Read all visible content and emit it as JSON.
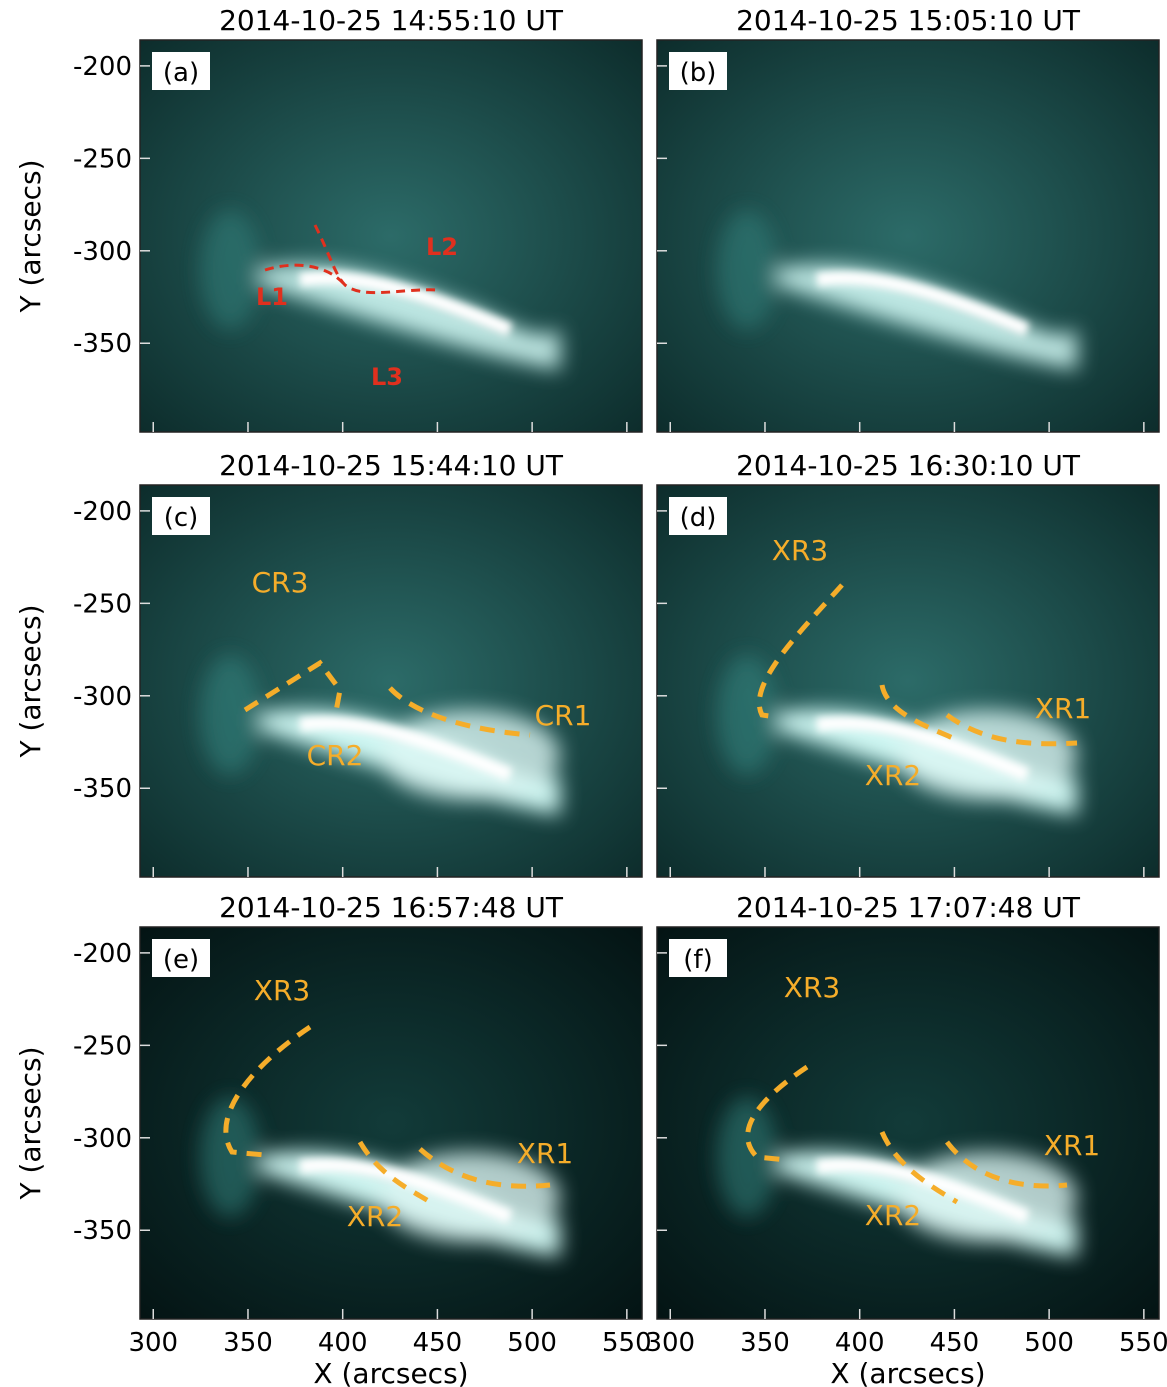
{
  "chart_data": [
    {
      "type": "image",
      "title": "2014-10-25 14:55:10 UT",
      "panel_label": "(a)",
      "ylabel": "Y (arcsecs)",
      "xlim": [
        293,
        558
      ],
      "ylim": [
        -398,
        -186
      ],
      "xticks": [
        300,
        350,
        400,
        450,
        500,
        550
      ],
      "yticks": [
        -200,
        -250,
        -300,
        -350
      ],
      "annotations": [
        "L1",
        "L2",
        "L3"
      ]
    },
    {
      "type": "image",
      "title": "2014-10-25 15:05:10 UT",
      "panel_label": "(b)",
      "xlim": [
        293,
        558
      ],
      "ylim": [
        -398,
        -186
      ],
      "xticks": [
        300,
        350,
        400,
        450,
        500,
        550
      ],
      "yticks": [
        -200,
        -250,
        -300,
        -350
      ],
      "annotations": []
    },
    {
      "type": "image",
      "title": "2014-10-25 15:44:10 UT",
      "panel_label": "(c)",
      "ylabel": "Y (arcsecs)",
      "xlim": [
        293,
        558
      ],
      "ylim": [
        -398,
        -186
      ],
      "xticks": [
        300,
        350,
        400,
        450,
        500,
        550
      ],
      "yticks": [
        -200,
        -250,
        -300,
        -350
      ],
      "annotations": [
        "CR3",
        "CR2",
        "CR1"
      ]
    },
    {
      "type": "image",
      "title": "2014-10-25 16:30:10 UT",
      "panel_label": "(d)",
      "xlim": [
        293,
        558
      ],
      "ylim": [
        -398,
        -186
      ],
      "xticks": [
        300,
        350,
        400,
        450,
        500,
        550
      ],
      "yticks": [
        -200,
        -250,
        -300,
        -350
      ],
      "annotations": [
        "XR3",
        "XR1",
        "XR2"
      ]
    },
    {
      "type": "image",
      "title": "2014-10-25 16:57:48 UT",
      "panel_label": "(e)",
      "ylabel": "Y (arcsecs)",
      "xlabel": "X (arcsecs)",
      "xlim": [
        293,
        558
      ],
      "ylim": [
        -398,
        -186
      ],
      "xticks": [
        300,
        350,
        400,
        450,
        500,
        550
      ],
      "yticks": [
        -200,
        -250,
        -300,
        -350
      ],
      "annotations": [
        "XR3",
        "XR1",
        "XR2"
      ]
    },
    {
      "type": "image",
      "title": "2014-10-25 17:07:48 UT",
      "panel_label": "(f)",
      "xlabel": "X (arcsecs)",
      "xlim": [
        293,
        558
      ],
      "ylim": [
        -398,
        -186
      ],
      "xticks": [
        300,
        350,
        400,
        450,
        500,
        550
      ],
      "yticks": [
        -200,
        -250,
        -300,
        -350
      ],
      "annotations": [
        "XR3",
        "XR1",
        "XR2"
      ]
    }
  ]
}
